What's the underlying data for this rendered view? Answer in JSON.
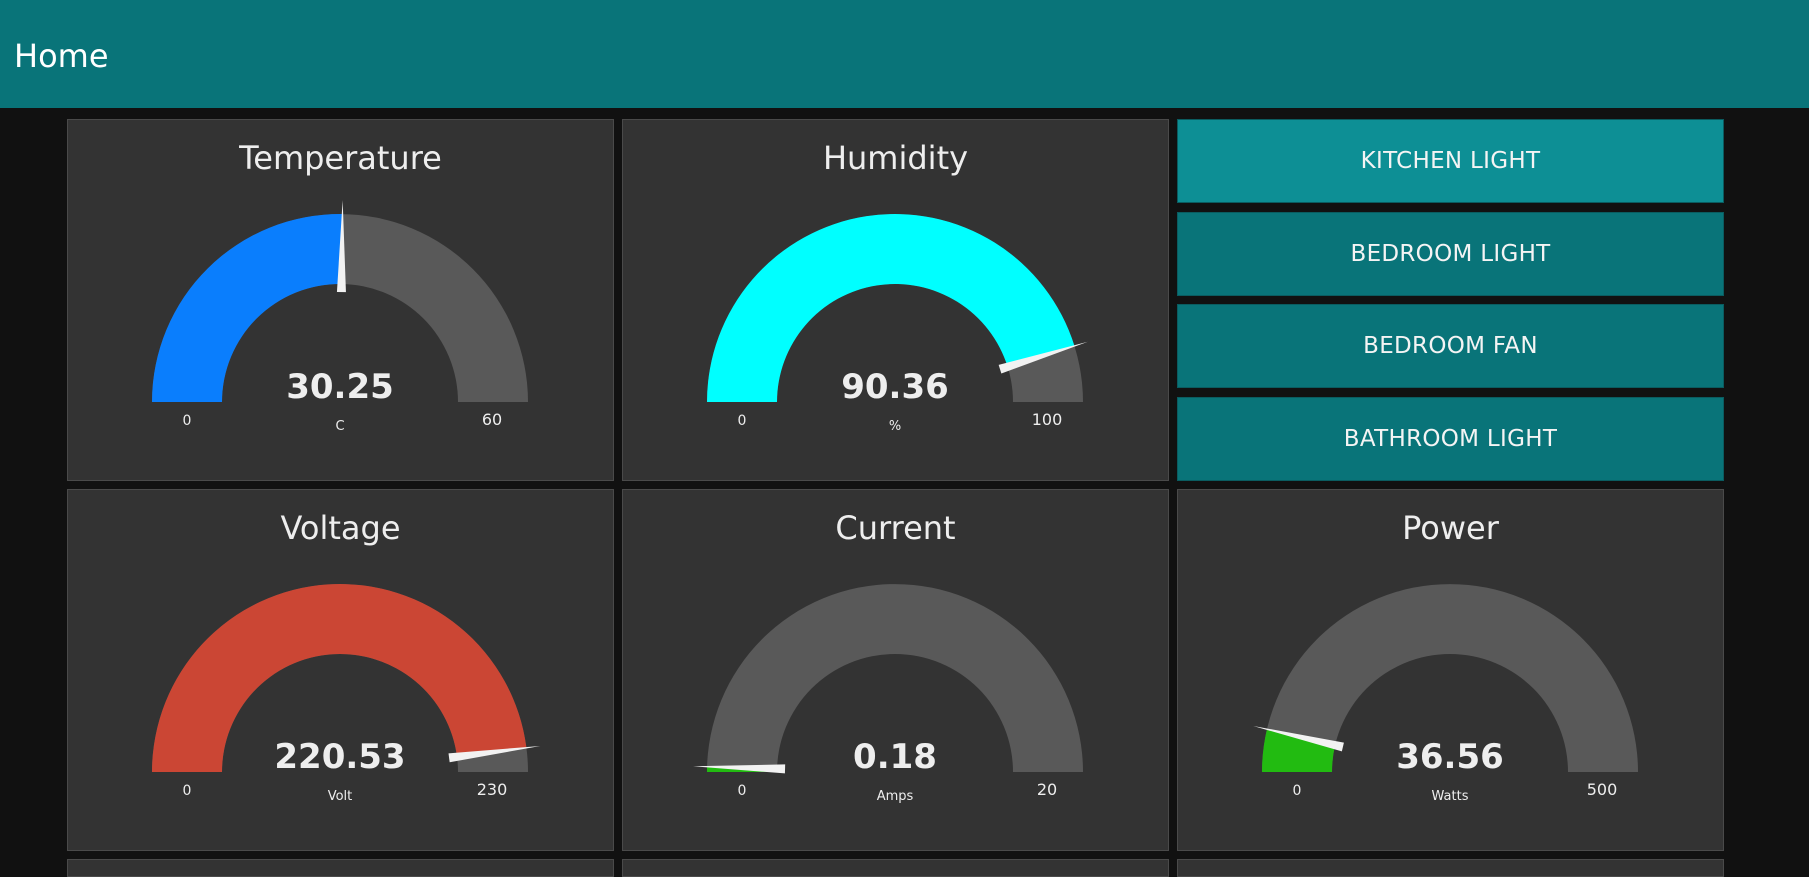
{
  "header": {
    "title": "Home"
  },
  "colors": {
    "header": "#097479",
    "background": "#111111",
    "card": "#333333",
    "gauge_track": "#595959",
    "button_active": "#0d8f95",
    "button": "#097479"
  },
  "buttons": [
    {
      "label": "KITCHEN LIGHT",
      "active": true
    },
    {
      "label": "BEDROOM LIGHT",
      "active": false
    },
    {
      "label": "BEDROOM FAN",
      "active": false
    },
    {
      "label": "BATHROOM LIGHT",
      "active": false
    }
  ],
  "gauges": [
    {
      "id": "temperature",
      "title": "Temperature",
      "value": "30.25",
      "min": "0",
      "max": "60",
      "unit": "C",
      "color": "#0a7efd"
    },
    {
      "id": "humidity",
      "title": "Humidity",
      "value": "90.36",
      "min": "0",
      "max": "100",
      "unit": "%",
      "color": "#00ffff"
    },
    {
      "id": "voltage",
      "title": "Voltage",
      "value": "220.53",
      "min": "0",
      "max": "230",
      "unit": "Volt",
      "color": "#cb4634"
    },
    {
      "id": "current",
      "title": "Current",
      "value": "0.18",
      "min": "0",
      "max": "20",
      "unit": "Amps",
      "color": "#22bb11"
    },
    {
      "id": "power",
      "title": "Power",
      "value": "36.56",
      "min": "0",
      "max": "500",
      "unit": "Watts",
      "color": "#22bb11"
    }
  ]
}
